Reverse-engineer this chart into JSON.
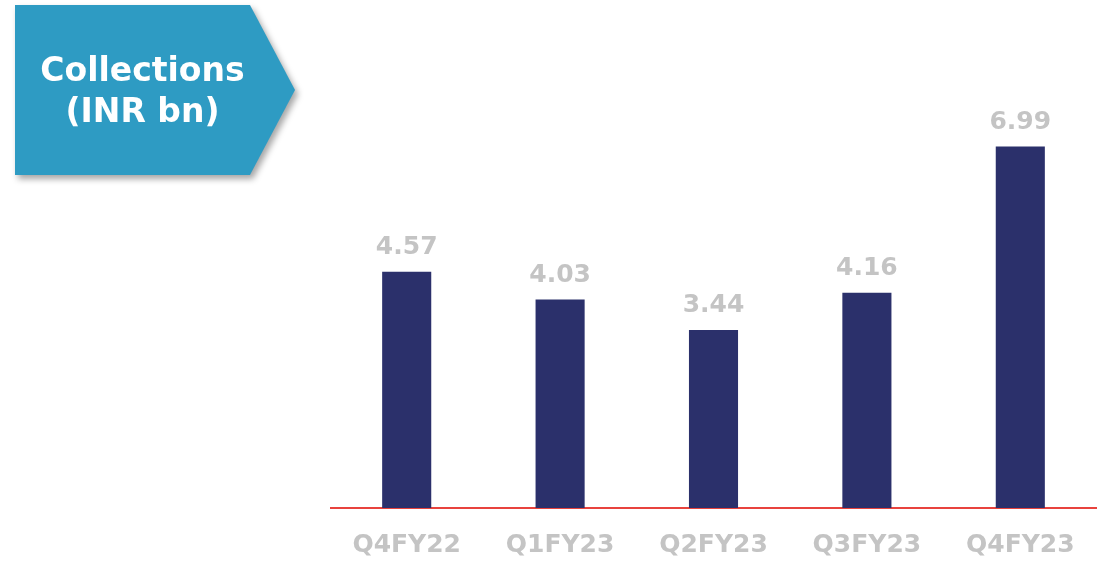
{
  "chart_data": {
    "type": "bar",
    "title": "Collections (INR bn)",
    "categories": [
      "Q4FY22",
      "Q1FY23",
      "Q2FY23",
      "Q3FY23",
      "Q4FY23"
    ],
    "values": [
      4.57,
      4.03,
      3.44,
      4.16,
      6.99
    ],
    "color": "#2b306b",
    "data_labels": true,
    "grid": false,
    "legend": false
  }
}
